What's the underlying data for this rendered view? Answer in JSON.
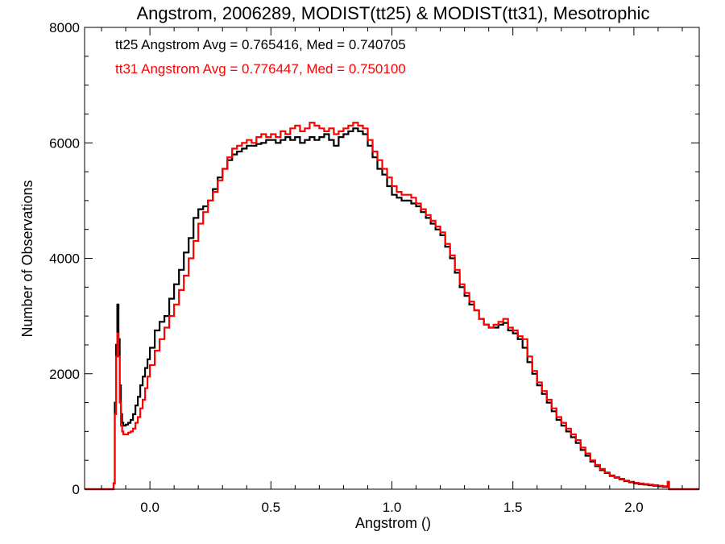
{
  "chart_data": {
    "type": "line",
    "title": "Angstrom, 2006289, MODIST(tt25) & MODIST(tt31), Mesotrophic",
    "xlabel": "Angstrom ()",
    "ylabel": "Number of Observations",
    "xlim": [
      -0.27,
      2.27
    ],
    "ylim": [
      0,
      8000
    ],
    "x_ticks": [
      0.0,
      0.5,
      1.0,
      1.5,
      2.0
    ],
    "x_tick_labels": [
      "0.0",
      "0.5",
      "1.0",
      "1.5",
      "2.0"
    ],
    "y_ticks": [
      0,
      2000,
      4000,
      6000,
      8000
    ],
    "y_tick_labels": [
      "0",
      "2000",
      "4000",
      "6000",
      "8000"
    ],
    "grid": false,
    "step": true,
    "annotations": [
      {
        "text": "tt25 Angstrom Avg = 0.765416, Med = 0.740705",
        "color": "#000000"
      },
      {
        "text": "tt31 Angstrom Avg = 0.776447, Med = 0.750100",
        "color": "#ff0000"
      }
    ],
    "series": [
      {
        "color": "#000000",
        "points": [
          [
            -0.27,
            0
          ],
          [
            -0.155,
            0
          ],
          [
            -0.15,
            100
          ],
          [
            -0.145,
            1500
          ],
          [
            -0.14,
            2500
          ],
          [
            -0.135,
            3200
          ],
          [
            -0.13,
            2600
          ],
          [
            -0.125,
            1800
          ],
          [
            -0.12,
            1300
          ],
          [
            -0.115,
            1150
          ],
          [
            -0.11,
            1100
          ],
          [
            -0.1,
            1120
          ],
          [
            -0.09,
            1150
          ],
          [
            -0.08,
            1200
          ],
          [
            -0.07,
            1300
          ],
          [
            -0.06,
            1450
          ],
          [
            -0.05,
            1600
          ],
          [
            -0.04,
            1800
          ],
          [
            -0.03,
            1950
          ],
          [
            -0.02,
            2100
          ],
          [
            -0.01,
            2250
          ],
          [
            0.0,
            2450
          ],
          [
            0.02,
            2750
          ],
          [
            0.04,
            2900
          ],
          [
            0.06,
            3000
          ],
          [
            0.08,
            3300
          ],
          [
            0.1,
            3550
          ],
          [
            0.12,
            3800
          ],
          [
            0.14,
            4100
          ],
          [
            0.16,
            4350
          ],
          [
            0.18,
            4700
          ],
          [
            0.2,
            4850
          ],
          [
            0.22,
            4900
          ],
          [
            0.24,
            5000
          ],
          [
            0.26,
            5200
          ],
          [
            0.28,
            5400
          ],
          [
            0.3,
            5550
          ],
          [
            0.32,
            5700
          ],
          [
            0.34,
            5800
          ],
          [
            0.36,
            5850
          ],
          [
            0.38,
            5900
          ],
          [
            0.4,
            5950
          ],
          [
            0.42,
            5950
          ],
          [
            0.44,
            5980
          ],
          [
            0.46,
            6000
          ],
          [
            0.48,
            6050
          ],
          [
            0.5,
            6050
          ],
          [
            0.52,
            6000
          ],
          [
            0.54,
            6050
          ],
          [
            0.56,
            6100
          ],
          [
            0.58,
            6050
          ],
          [
            0.6,
            6100
          ],
          [
            0.62,
            6000
          ],
          [
            0.64,
            6050
          ],
          [
            0.66,
            6100
          ],
          [
            0.68,
            6050
          ],
          [
            0.7,
            6100
          ],
          [
            0.72,
            6150
          ],
          [
            0.74,
            6050
          ],
          [
            0.76,
            5950
          ],
          [
            0.78,
            6100
          ],
          [
            0.8,
            6150
          ],
          [
            0.82,
            6200
          ],
          [
            0.84,
            6250
          ],
          [
            0.86,
            6200
          ],
          [
            0.88,
            6150
          ],
          [
            0.9,
            5950
          ],
          [
            0.92,
            5750
          ],
          [
            0.94,
            5550
          ],
          [
            0.96,
            5450
          ],
          [
            0.98,
            5250
          ],
          [
            1.0,
            5100
          ],
          [
            1.02,
            5050
          ],
          [
            1.04,
            5000
          ],
          [
            1.06,
            5000
          ],
          [
            1.08,
            4950
          ],
          [
            1.1,
            4900
          ],
          [
            1.12,
            4800
          ],
          [
            1.14,
            4700
          ],
          [
            1.16,
            4600
          ],
          [
            1.18,
            4500
          ],
          [
            1.2,
            4400
          ],
          [
            1.22,
            4200
          ],
          [
            1.24,
            4000
          ],
          [
            1.26,
            3750
          ],
          [
            1.28,
            3500
          ],
          [
            1.3,
            3350
          ],
          [
            1.32,
            3200
          ],
          [
            1.34,
            3100
          ],
          [
            1.36,
            2950
          ],
          [
            1.38,
            2850
          ],
          [
            1.4,
            2800
          ],
          [
            1.42,
            2800
          ],
          [
            1.44,
            2850
          ],
          [
            1.46,
            2880
          ],
          [
            1.48,
            2750
          ],
          [
            1.5,
            2700
          ],
          [
            1.52,
            2600
          ],
          [
            1.54,
            2450
          ],
          [
            1.56,
            2200
          ],
          [
            1.58,
            2000
          ],
          [
            1.6,
            1800
          ],
          [
            1.62,
            1650
          ],
          [
            1.64,
            1500
          ],
          [
            1.66,
            1350
          ],
          [
            1.68,
            1200
          ],
          [
            1.7,
            1100
          ],
          [
            1.72,
            1000
          ],
          [
            1.74,
            900
          ],
          [
            1.76,
            800
          ],
          [
            1.78,
            680
          ],
          [
            1.8,
            580
          ],
          [
            1.82,
            480
          ],
          [
            1.84,
            400
          ],
          [
            1.86,
            330
          ],
          [
            1.88,
            280
          ],
          [
            1.9,
            230
          ],
          [
            1.92,
            200
          ],
          [
            1.94,
            170
          ],
          [
            1.96,
            140
          ],
          [
            1.98,
            120
          ],
          [
            2.0,
            100
          ],
          [
            2.02,
            90
          ],
          [
            2.04,
            80
          ],
          [
            2.06,
            70
          ],
          [
            2.08,
            60
          ],
          [
            2.1,
            50
          ],
          [
            2.12,
            40
          ],
          [
            2.14,
            120
          ],
          [
            2.145,
            0
          ],
          [
            2.27,
            0
          ]
        ]
      },
      {
        "color": "#ff0000",
        "points": [
          [
            -0.27,
            0
          ],
          [
            -0.155,
            0
          ],
          [
            -0.15,
            100
          ],
          [
            -0.145,
            1300
          ],
          [
            -0.14,
            2300
          ],
          [
            -0.135,
            2700
          ],
          [
            -0.13,
            2300
          ],
          [
            -0.125,
            1500
          ],
          [
            -0.12,
            1100
          ],
          [
            -0.115,
            1000
          ],
          [
            -0.11,
            950
          ],
          [
            -0.1,
            950
          ],
          [
            -0.09,
            980
          ],
          [
            -0.08,
            1000
          ],
          [
            -0.07,
            1050
          ],
          [
            -0.06,
            1150
          ],
          [
            -0.05,
            1250
          ],
          [
            -0.04,
            1400
          ],
          [
            -0.03,
            1550
          ],
          [
            -0.02,
            1750
          ],
          [
            -0.01,
            1950
          ],
          [
            0.0,
            2150
          ],
          [
            0.02,
            2400
          ],
          [
            0.04,
            2600
          ],
          [
            0.06,
            2800
          ],
          [
            0.08,
            3000
          ],
          [
            0.1,
            3200
          ],
          [
            0.12,
            3450
          ],
          [
            0.14,
            3700
          ],
          [
            0.16,
            4000
          ],
          [
            0.18,
            4300
          ],
          [
            0.2,
            4600
          ],
          [
            0.22,
            4800
          ],
          [
            0.24,
            5000
          ],
          [
            0.26,
            5150
          ],
          [
            0.28,
            5350
          ],
          [
            0.3,
            5550
          ],
          [
            0.32,
            5750
          ],
          [
            0.34,
            5900
          ],
          [
            0.36,
            5950
          ],
          [
            0.38,
            6000
          ],
          [
            0.4,
            6050
          ],
          [
            0.42,
            6000
          ],
          [
            0.44,
            6100
          ],
          [
            0.46,
            6150
          ],
          [
            0.48,
            6100
          ],
          [
            0.5,
            6150
          ],
          [
            0.52,
            6100
          ],
          [
            0.54,
            6200
          ],
          [
            0.56,
            6150
          ],
          [
            0.58,
            6250
          ],
          [
            0.6,
            6300
          ],
          [
            0.62,
            6200
          ],
          [
            0.64,
            6250
          ],
          [
            0.66,
            6350
          ],
          [
            0.68,
            6300
          ],
          [
            0.7,
            6250
          ],
          [
            0.72,
            6200
          ],
          [
            0.74,
            6250
          ],
          [
            0.76,
            6150
          ],
          [
            0.78,
            6200
          ],
          [
            0.8,
            6250
          ],
          [
            0.82,
            6300
          ],
          [
            0.84,
            6350
          ],
          [
            0.86,
            6300
          ],
          [
            0.88,
            6250
          ],
          [
            0.9,
            6050
          ],
          [
            0.92,
            5850
          ],
          [
            0.94,
            5700
          ],
          [
            0.96,
            5550
          ],
          [
            0.98,
            5400
          ],
          [
            1.0,
            5250
          ],
          [
            1.02,
            5150
          ],
          [
            1.04,
            5100
          ],
          [
            1.06,
            5100
          ],
          [
            1.08,
            5050
          ],
          [
            1.1,
            4950
          ],
          [
            1.12,
            4850
          ],
          [
            1.14,
            4750
          ],
          [
            1.16,
            4650
          ],
          [
            1.18,
            4550
          ],
          [
            1.2,
            4450
          ],
          [
            1.22,
            4250
          ],
          [
            1.24,
            4050
          ],
          [
            1.26,
            3800
          ],
          [
            1.28,
            3550
          ],
          [
            1.3,
            3400
          ],
          [
            1.32,
            3250
          ],
          [
            1.34,
            3100
          ],
          [
            1.36,
            2950
          ],
          [
            1.38,
            2850
          ],
          [
            1.4,
            2800
          ],
          [
            1.42,
            2850
          ],
          [
            1.44,
            2900
          ],
          [
            1.46,
            2950
          ],
          [
            1.48,
            2800
          ],
          [
            1.5,
            2750
          ],
          [
            1.52,
            2650
          ],
          [
            1.54,
            2600
          ],
          [
            1.56,
            2300
          ],
          [
            1.58,
            2050
          ],
          [
            1.6,
            1850
          ],
          [
            1.62,
            1700
          ],
          [
            1.64,
            1550
          ],
          [
            1.66,
            1400
          ],
          [
            1.68,
            1250
          ],
          [
            1.7,
            1150
          ],
          [
            1.72,
            1050
          ],
          [
            1.74,
            950
          ],
          [
            1.76,
            850
          ],
          [
            1.78,
            720
          ],
          [
            1.8,
            620
          ],
          [
            1.82,
            500
          ],
          [
            1.84,
            420
          ],
          [
            1.86,
            350
          ],
          [
            1.88,
            290
          ],
          [
            1.9,
            240
          ],
          [
            1.92,
            210
          ],
          [
            1.94,
            180
          ],
          [
            1.96,
            150
          ],
          [
            1.98,
            130
          ],
          [
            2.0,
            110
          ],
          [
            2.02,
            100
          ],
          [
            2.04,
            90
          ],
          [
            2.06,
            80
          ],
          [
            2.08,
            70
          ],
          [
            2.1,
            60
          ],
          [
            2.12,
            50
          ],
          [
            2.14,
            130
          ],
          [
            2.145,
            0
          ],
          [
            2.27,
            0
          ]
        ]
      }
    ]
  }
}
